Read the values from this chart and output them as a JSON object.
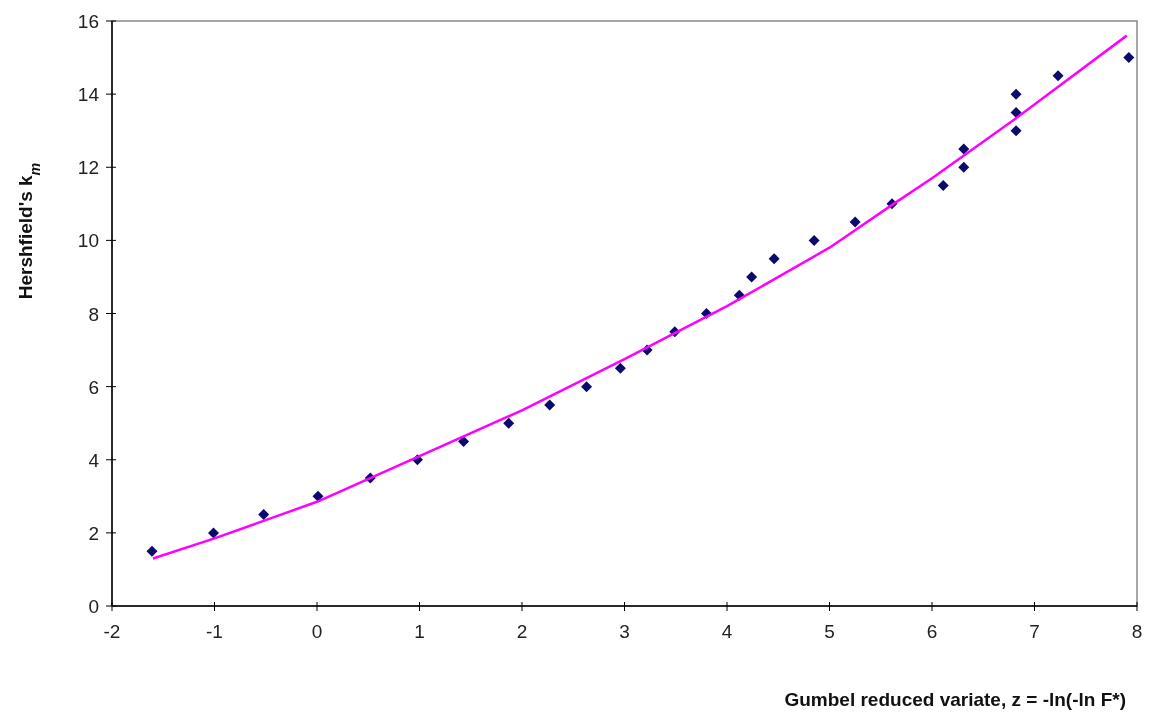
{
  "chart_data": {
    "type": "scatter",
    "xlabel": "Gumbel reduced variate, z = -ln(-ln F*)",
    "ylabel": "Hershfield's k$_{m}$",
    "xlim": [
      -2,
      8
    ],
    "ylim": [
      0,
      16
    ],
    "xticks": [
      -2,
      -1,
      0,
      1,
      2,
      3,
      4,
      5,
      6,
      7,
      8
    ],
    "yticks": [
      0,
      2,
      4,
      6,
      8,
      10,
      12,
      14,
      16
    ],
    "grid": false,
    "series": [
      {
        "color": "#0a0a6e",
        "marker": "diamond",
        "x": [
          -1.61,
          -1.01,
          -0.52,
          0.01,
          0.52,
          0.98,
          1.43,
          1.87,
          2.27,
          2.63,
          2.96,
          3.22,
          3.49,
          3.8,
          4.12,
          4.24,
          4.46,
          4.85,
          5.25,
          5.61,
          6.11,
          6.31,
          6.31,
          6.82,
          6.82,
          6.82,
          7.23,
          7.92
        ],
        "values": [
          1.5,
          2,
          2.5,
          3,
          3.5,
          4,
          4.5,
          5,
          5.5,
          6,
          6.5,
          7,
          7.5,
          8,
          8.5,
          9,
          9.5,
          10,
          10.5,
          11,
          11.5,
          12,
          12.5,
          13,
          13.5,
          14,
          14.5,
          15
        ]
      },
      {
        "type": "line",
        "color": "#ff00ff",
        "marker": "none",
        "x": [
          -1.6,
          -1,
          0,
          1,
          2,
          3,
          4,
          5,
          5.6,
          6,
          6.8,
          7.9
        ],
        "values": [
          1.3,
          1.85,
          2.85,
          4.1,
          5.35,
          6.75,
          8.2,
          9.8,
          10.95,
          11.7,
          13.3,
          15.6
        ]
      }
    ]
  }
}
